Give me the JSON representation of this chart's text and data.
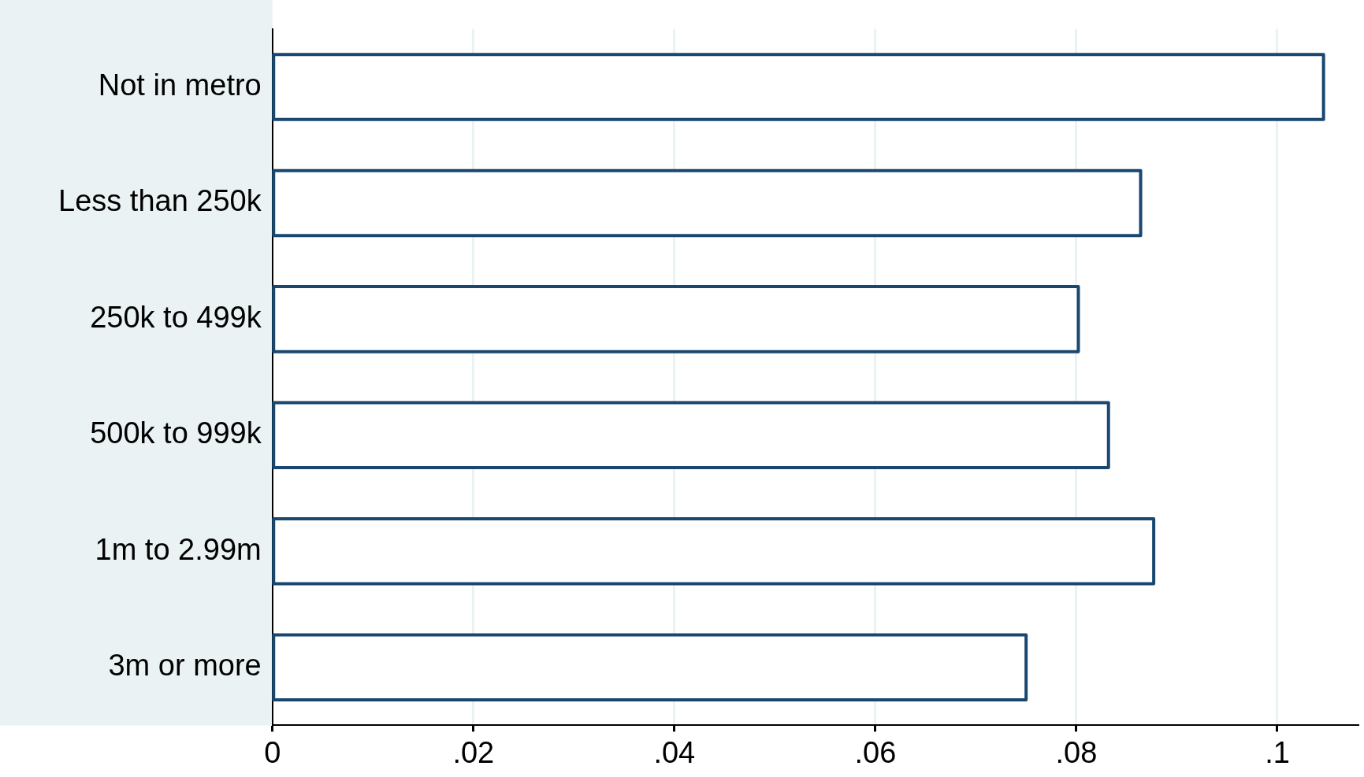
{
  "chart_data": {
    "type": "bar",
    "orientation": "horizontal",
    "categories": [
      "Not in metro",
      "Less than 250k",
      "250k to 499k",
      "500k to 999k",
      "1m to 2.99m",
      "3m or more"
    ],
    "values": [
      0.1046,
      0.0864,
      0.0802,
      0.0832,
      0.0877,
      0.075
    ],
    "color": "#ffffff",
    "xlim": [
      0,
      0.108
    ],
    "xticks": [
      0,
      {
        "value": 0.02,
        "label": ".02"
      },
      {
        "value": 0.04,
        "label": ".04"
      },
      {
        "value": 0.06,
        "label": ".06"
      },
      {
        "value": 0.08,
        "label": ".08"
      },
      {
        "value": 0.1,
        "label": ".1"
      }
    ],
    "grid": "x"
  }
}
